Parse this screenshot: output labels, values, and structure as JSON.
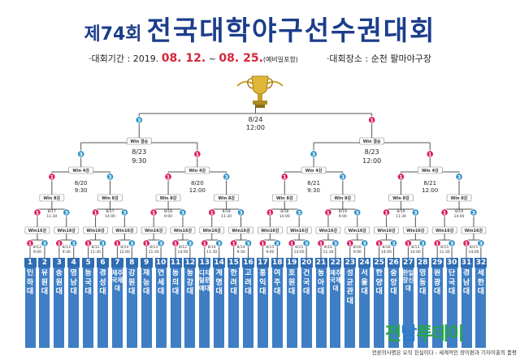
{
  "header": {
    "edition": "제74회",
    "title": "전국대학야구선수권대회"
  },
  "info": {
    "period_label": "·대회기간 : 2019.",
    "period_start": "08. 12.",
    "period_sep": "~",
    "period_end": "08. 25.",
    "period_note": "(예비일포함)",
    "venue": "·대회장소 : 순천 팔마야구장"
  },
  "final": {
    "date": "8/24",
    "time": "12:00"
  },
  "semis": [
    {
      "date": "8/23",
      "time": "9:30"
    },
    {
      "date": "8/23",
      "time": "12:00"
    }
  ],
  "quarters": [
    {
      "date": "8/20",
      "time": "9:30"
    },
    {
      "date": "8/20",
      "time": "12:00"
    },
    {
      "date": "8/21",
      "time": "9:30"
    },
    {
      "date": "8/21",
      "time": "12:00"
    }
  ],
  "labels": {
    "win_final": "Win 결승",
    "win_4": "Win 4강",
    "win_8": "Win 8강",
    "win_16": "Win16강"
  },
  "round16": [
    {
      "date": "8/17",
      "time": "11:30"
    },
    {
      "date": "8/17",
      "time": "14:00"
    },
    {
      "date": "8/18",
      "time": "9:00"
    },
    {
      "date": "8/18",
      "time": "11:30"
    },
    {
      "date": "8/18",
      "time": "14:00"
    },
    {
      "date": "8/19",
      "time": "9:00"
    },
    {
      "date": "8/19",
      "time": "11:30"
    },
    {
      "date": "8/19",
      "time": "14:00"
    }
  ],
  "round32": [
    {
      "date": "8/12",
      "time": "9:00"
    },
    {
      "date": "8/13",
      "time": "9:30"
    },
    {
      "date": "8/12",
      "time": "11:30"
    },
    {
      "date": "8/14",
      "time": "12:00"
    },
    {
      "date": "8/13",
      "time": "11:30"
    },
    {
      "date": "8/12",
      "time": "14:00"
    },
    {
      "date": "8/14",
      "time": "11:30"
    },
    {
      "date": "8/14",
      "time": "9:30"
    },
    {
      "date": "8/15",
      "time": "9:00"
    },
    {
      "date": "8/15",
      "time": "14:00"
    },
    {
      "date": "8/16",
      "time": "11:30"
    },
    {
      "date": "8/16",
      "time": "9:00"
    },
    {
      "date": "8/16",
      "time": "14:00"
    },
    {
      "date": "8/13",
      "time": "14:00"
    },
    {
      "date": "8/15",
      "time": "11:30"
    },
    {
      "date": "8/15",
      "time": "14:00"
    }
  ],
  "teams": [
    {
      "no": "1",
      "name": "인하대"
    },
    {
      "no": "2",
      "name": "유원대"
    },
    {
      "no": "3",
      "name": "송원대"
    },
    {
      "no": "4",
      "name": "영남대"
    },
    {
      "no": "5",
      "name": "동국대"
    },
    {
      "no": "6",
      "name": "경성대"
    },
    {
      "no": "7",
      "name": "제주국제대"
    },
    {
      "no": "8",
      "name": "강원대"
    },
    {
      "no": "9",
      "name": "재능대"
    },
    {
      "no": "10",
      "name": "연세대"
    },
    {
      "no": "11",
      "name": "동의대"
    },
    {
      "no": "12",
      "name": "동강대"
    },
    {
      "no": "13",
      "name": "디지털문예대"
    },
    {
      "no": "14",
      "name": "계명대"
    },
    {
      "no": "15",
      "name": "한려대"
    },
    {
      "no": "16",
      "name": "고려대"
    },
    {
      "no": "17",
      "name": "홍익대"
    },
    {
      "no": "18",
      "name": "여주대"
    },
    {
      "no": "19",
      "name": "호원대"
    },
    {
      "no": "20",
      "name": "건국대"
    },
    {
      "no": "21",
      "name": "동아대"
    },
    {
      "no": "22",
      "name": "제주국제대"
    },
    {
      "no": "23",
      "name": "성균관대"
    },
    {
      "no": "24",
      "name": "서울대"
    },
    {
      "no": "25",
      "name": "한양대"
    },
    {
      "no": "26",
      "name": "중앙대"
    },
    {
      "no": "27",
      "name": "한일장신대"
    },
    {
      "no": "28",
      "name": "영동대"
    },
    {
      "no": "29",
      "name": "원광대"
    },
    {
      "no": "30",
      "name": "단국대"
    },
    {
      "no": "31",
      "name": "경남대"
    },
    {
      "no": "32",
      "name": "세한대"
    }
  ],
  "logo": {
    "part1": "전",
    "part2": "남",
    "part3": "투데이"
  },
  "footer": "언론의사명은 오직 진실이다 - 세계적인 장이편과 기자이출의 품평",
  "colors": {
    "title": "#1c3d8c",
    "highlight": "#d6263a",
    "team": "#3f7ec4",
    "line": "#555555",
    "red": "#d81b60",
    "blue": "#2a8ec4"
  }
}
